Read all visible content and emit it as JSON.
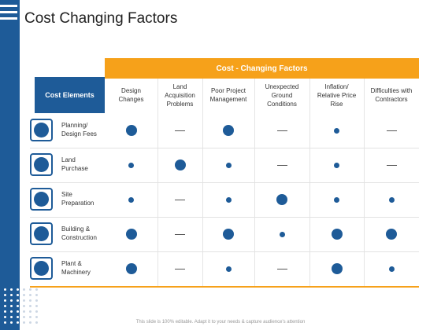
{
  "slide": {
    "title": "Cost Changing Factors",
    "footer": "This slide is 100% editable. Adapt it to your needs & capture audience's attention"
  },
  "table": {
    "group_header": "Cost - Changing Factors",
    "row_header": "Cost Elements",
    "columns": [
      "Design\nChanges",
      "Land\nAcquisition\nProblems",
      "Poor Project\nManagement",
      "Unexpected\nGround\nConditions",
      "Inflation/\nRelative Price\nRise",
      "Difficulties with\nContractors"
    ],
    "rows": [
      {
        "label": "Planning/\nDesign Fees",
        "icon": "planning-icon",
        "cells": [
          "large",
          "dash",
          "large",
          "dash",
          "small",
          "dash"
        ]
      },
      {
        "label": "Land\nPurchase",
        "icon": "document-icon",
        "cells": [
          "small",
          "large",
          "small",
          "dash",
          "small",
          "dash"
        ]
      },
      {
        "label": "Site\nPreparation",
        "icon": "site-icon",
        "cells": [
          "small",
          "dash",
          "small",
          "large",
          "small",
          "small"
        ]
      },
      {
        "label": "Building &\nConstruction",
        "icon": "building-icon",
        "cells": [
          "large",
          "dash",
          "large",
          "small",
          "large",
          "large"
        ]
      },
      {
        "label": "Plant &\nMachinery",
        "icon": "machinery-icon",
        "cells": [
          "large",
          "dash",
          "small",
          "dash",
          "large",
          "small"
        ]
      }
    ]
  },
  "colors": {
    "accent_blue": "#1e5b98",
    "accent_orange": "#f6a11a"
  }
}
